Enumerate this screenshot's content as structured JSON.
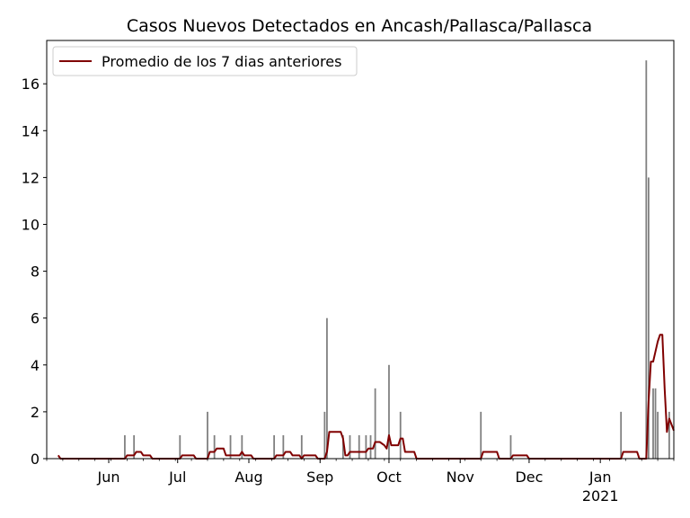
{
  "chart_data": {
    "type": "bar",
    "title": "Casos Nuevos Detectados en Ancash/Pallasca/Pallasca",
    "xlabel": "",
    "ylabel": "",
    "ylim": [
      0,
      17.85
    ],
    "x_range": [
      "2020-05-05",
      "2021-02-02"
    ],
    "y_ticks": [
      0,
      2,
      4,
      6,
      8,
      10,
      12,
      14,
      16
    ],
    "y_tick_labels": [
      "0",
      "2",
      "4",
      "6",
      "8",
      "10",
      "12",
      "14",
      "16"
    ],
    "x_ticks": [
      {
        "date": "2020-06-01",
        "label": "Jun",
        "sublabel": ""
      },
      {
        "date": "2020-07-01",
        "label": "Jul",
        "sublabel": ""
      },
      {
        "date": "2020-08-01",
        "label": "Aug",
        "sublabel": ""
      },
      {
        "date": "2020-09-01",
        "label": "Sep",
        "sublabel": ""
      },
      {
        "date": "2020-10-01",
        "label": "Oct",
        "sublabel": ""
      },
      {
        "date": "2020-11-01",
        "label": "Nov",
        "sublabel": ""
      },
      {
        "date": "2020-12-01",
        "label": "Dec",
        "sublabel": ""
      },
      {
        "date": "2021-01-01",
        "label": "Jan",
        "sublabel": "2021"
      }
    ],
    "legend": {
      "label": "Promedio de los 7 dias anteriores",
      "position": "upper-left"
    },
    "colors": {
      "bars": "#808080",
      "line": "#800000"
    },
    "series": [
      {
        "name": "Casos nuevos",
        "type": "bar",
        "points": [
          [
            "2020-06-08",
            1
          ],
          [
            "2020-06-12",
            1
          ],
          [
            "2020-07-02",
            1
          ],
          [
            "2020-07-14",
            2
          ],
          [
            "2020-07-17",
            1
          ],
          [
            "2020-07-24",
            1
          ],
          [
            "2020-07-29",
            1
          ],
          [
            "2020-08-12",
            1
          ],
          [
            "2020-08-16",
            1
          ],
          [
            "2020-08-24",
            1
          ],
          [
            "2020-09-03",
            2
          ],
          [
            "2020-09-04",
            6
          ],
          [
            "2020-09-11",
            1
          ],
          [
            "2020-09-14",
            1
          ],
          [
            "2020-09-18",
            1
          ],
          [
            "2020-09-21",
            1
          ],
          [
            "2020-09-23",
            1
          ],
          [
            "2020-09-25",
            3
          ],
          [
            "2020-10-01",
            4
          ],
          [
            "2020-10-06",
            2
          ],
          [
            "2020-11-10",
            2
          ],
          [
            "2020-11-23",
            1
          ],
          [
            "2021-01-10",
            2
          ],
          [
            "2021-01-21",
            17
          ],
          [
            "2021-01-22",
            12
          ],
          [
            "2021-01-24",
            3
          ],
          [
            "2021-01-25",
            3
          ],
          [
            "2021-01-26",
            2
          ],
          [
            "2021-01-31",
            2
          ]
        ]
      },
      {
        "name": "Promedio de los 7 dias anteriores",
        "type": "line",
        "points": [
          [
            "2020-05-10",
            0.14
          ],
          [
            "2020-05-11",
            0
          ],
          [
            "2020-06-08",
            0
          ],
          [
            "2020-06-09",
            0.14
          ],
          [
            "2020-06-12",
            0.14
          ],
          [
            "2020-06-13",
            0.29
          ],
          [
            "2020-06-15",
            0.29
          ],
          [
            "2020-06-16",
            0.14
          ],
          [
            "2020-06-19",
            0.14
          ],
          [
            "2020-06-20",
            0
          ],
          [
            "2020-07-02",
            0
          ],
          [
            "2020-07-03",
            0.14
          ],
          [
            "2020-07-08",
            0.14
          ],
          [
            "2020-07-09",
            0
          ],
          [
            "2020-07-14",
            0
          ],
          [
            "2020-07-15",
            0.29
          ],
          [
            "2020-07-17",
            0.29
          ],
          [
            "2020-07-18",
            0.43
          ],
          [
            "2020-07-21",
            0.43
          ],
          [
            "2020-07-22",
            0.14
          ],
          [
            "2020-07-28",
            0.14
          ],
          [
            "2020-07-29",
            0.29
          ],
          [
            "2020-07-30",
            0.14
          ],
          [
            "2020-08-02",
            0.14
          ],
          [
            "2020-08-03",
            0
          ],
          [
            "2020-08-12",
            0
          ],
          [
            "2020-08-13",
            0.14
          ],
          [
            "2020-08-16",
            0.14
          ],
          [
            "2020-08-17",
            0.29
          ],
          [
            "2020-08-19",
            0.29
          ],
          [
            "2020-08-20",
            0.14
          ],
          [
            "2020-08-23",
            0.14
          ],
          [
            "2020-08-24",
            0
          ],
          [
            "2020-08-25",
            0.14
          ],
          [
            "2020-08-30",
            0.14
          ],
          [
            "2020-08-31",
            0
          ],
          [
            "2020-09-03",
            0
          ],
          [
            "2020-09-04",
            0.29
          ],
          [
            "2020-09-05",
            1.14
          ],
          [
            "2020-09-10",
            1.14
          ],
          [
            "2020-09-11",
            0.86
          ],
          [
            "2020-09-12",
            0.14
          ],
          [
            "2020-09-13",
            0.14
          ],
          [
            "2020-09-14",
            0.29
          ],
          [
            "2020-09-21",
            0.29
          ],
          [
            "2020-09-22",
            0.43
          ],
          [
            "2020-09-24",
            0.43
          ],
          [
            "2020-09-25",
            0.71
          ],
          [
            "2020-09-27",
            0.71
          ],
          [
            "2020-09-29",
            0.57
          ],
          [
            "2020-09-30",
            0.43
          ],
          [
            "2020-10-01",
            1.0
          ],
          [
            "2020-10-02",
            0.57
          ],
          [
            "2020-10-05",
            0.57
          ],
          [
            "2020-10-06",
            0.86
          ],
          [
            "2020-10-07",
            0.86
          ],
          [
            "2020-10-08",
            0.29
          ],
          [
            "2020-10-12",
            0.29
          ],
          [
            "2020-10-13",
            0
          ],
          [
            "2020-11-10",
            0
          ],
          [
            "2020-11-11",
            0.29
          ],
          [
            "2020-11-17",
            0.29
          ],
          [
            "2020-11-18",
            0
          ],
          [
            "2020-11-23",
            0
          ],
          [
            "2020-11-24",
            0.14
          ],
          [
            "2020-11-30",
            0.14
          ],
          [
            "2020-12-01",
            0
          ],
          [
            "2021-01-10",
            0
          ],
          [
            "2021-01-11",
            0.29
          ],
          [
            "2021-01-17",
            0.29
          ],
          [
            "2021-01-18",
            0
          ],
          [
            "2021-01-21",
            0
          ],
          [
            "2021-01-22",
            2.43
          ],
          [
            "2021-01-23",
            4.14
          ],
          [
            "2021-01-24",
            4.14
          ],
          [
            "2021-01-25",
            4.57
          ],
          [
            "2021-01-26",
            5.0
          ],
          [
            "2021-01-27",
            5.29
          ],
          [
            "2021-01-28",
            5.29
          ],
          [
            "2021-01-29",
            3.0
          ],
          [
            "2021-01-30",
            1.14
          ],
          [
            "2021-01-31",
            1.71
          ],
          [
            "2021-02-02",
            1.2
          ]
        ]
      }
    ]
  }
}
